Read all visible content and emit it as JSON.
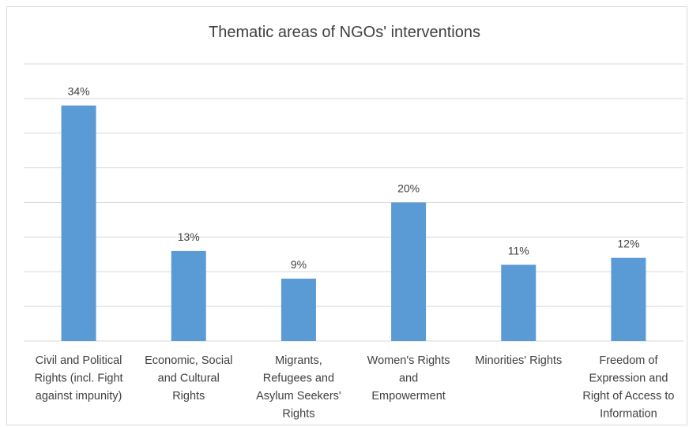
{
  "chart_data": {
    "type": "bar",
    "title": "Thematic areas of NGOs' interventions",
    "categories": [
      [
        "Civil and Political",
        "Rights (incl. Fight",
        "against impunity)"
      ],
      [
        "Economic, Social",
        "and  Cultural",
        "Rights"
      ],
      [
        "Migrants,",
        "Refugees and",
        "Asylum Seekers'",
        "Rights"
      ],
      [
        "Women's Rights",
        "and",
        "Empowerment"
      ],
      [
        "Minorities' Rights"
      ],
      [
        "Freedom of",
        "Expression and",
        "Right of Access to",
        "Information"
      ]
    ],
    "values": [
      34,
      13,
      9,
      20,
      11,
      12
    ],
    "value_labels": [
      "34%",
      "13%",
      "9%",
      "20%",
      "11%",
      "12%"
    ],
    "ylim": [
      0,
      40
    ],
    "grid": true,
    "bar_color": "#5b9bd5",
    "grid_color": "#d9d9d9",
    "text_color": "#404040"
  }
}
